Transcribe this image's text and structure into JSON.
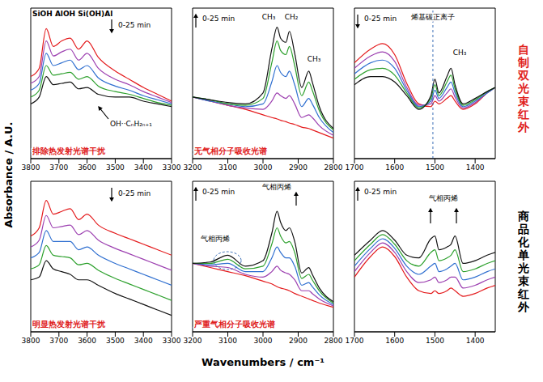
{
  "y_label": "Absorbance / A.U.",
  "x_label": "Wavenumbers / cm⁻¹",
  "row_labels": [
    {
      "text": "自制双光束红外",
      "color": "#e0201b"
    },
    {
      "text": "商品化单光束红外",
      "color": "#000000"
    }
  ],
  "chart_data": [
    {
      "type": "line",
      "xlim": [
        3800,
        3300
      ],
      "xticks": [
        3800,
        3700,
        3600,
        3500,
        3400,
        3300
      ],
      "ylim": [
        0,
        1.1
      ],
      "tick_labels": "x",
      "x": [
        3800,
        3770,
        3745,
        3720,
        3690,
        3660,
        3630,
        3600,
        3560,
        3500,
        3450,
        3400,
        3350,
        3300
      ],
      "series": [
        {
          "color": "#e41a1c",
          "values": [
            0.6,
            0.66,
            0.95,
            0.82,
            0.86,
            0.88,
            0.8,
            0.86,
            0.74,
            0.64,
            0.58,
            0.52,
            0.47,
            0.42
          ]
        },
        {
          "color": "#9c3fb0",
          "values": [
            0.55,
            0.6,
            0.86,
            0.75,
            0.78,
            0.8,
            0.72,
            0.77,
            0.66,
            0.58,
            0.54,
            0.49,
            0.45,
            0.41
          ]
        },
        {
          "color": "#2f6fd0",
          "values": [
            0.5,
            0.55,
            0.77,
            0.68,
            0.7,
            0.72,
            0.65,
            0.68,
            0.59,
            0.53,
            0.5,
            0.46,
            0.43,
            0.4
          ]
        },
        {
          "color": "#2ca02c",
          "values": [
            0.45,
            0.5,
            0.68,
            0.61,
            0.62,
            0.63,
            0.58,
            0.6,
            0.53,
            0.49,
            0.47,
            0.44,
            0.41,
            0.39
          ]
        },
        {
          "color": "#111111",
          "values": [
            0.4,
            0.45,
            0.6,
            0.54,
            0.55,
            0.56,
            0.51,
            0.52,
            0.47,
            0.45,
            0.45,
            0.42,
            0.4,
            0.38
          ]
        }
      ],
      "annotations": [
        {
          "text": "SiOH AlOH Si(OH)Al"
        },
        {
          "text": "0-25 min"
        },
        {
          "text": "OH··CₙH₂ₙ₊₁"
        },
        {
          "text": "排除热发射光谱干扰",
          "color": "#e0201b"
        }
      ]
    },
    {
      "type": "line",
      "xlim": [
        3200,
        2800
      ],
      "xticks": [
        3200,
        3100,
        3000,
        2900,
        2800
      ],
      "ylim": [
        0,
        1.1
      ],
      "tick_labels": "x",
      "x": [
        3200,
        3150,
        3100,
        3050,
        3000,
        2975,
        2960,
        2950,
        2935,
        2925,
        2910,
        2890,
        2870,
        2860,
        2840,
        2800
      ],
      "series": [
        {
          "color": "#e41a1c",
          "values": [
            0.45,
            0.42,
            0.39,
            0.36,
            0.32,
            0.3,
            0.29,
            0.28,
            0.27,
            0.26,
            0.25,
            0.23,
            0.22,
            0.21,
            0.19,
            0.15
          ]
        },
        {
          "color": "#9c3fb0",
          "values": [
            0.45,
            0.42,
            0.39,
            0.37,
            0.36,
            0.42,
            0.48,
            0.46,
            0.44,
            0.46,
            0.4,
            0.3,
            0.32,
            0.3,
            0.24,
            0.17
          ]
        },
        {
          "color": "#2f6fd0",
          "values": [
            0.45,
            0.42,
            0.4,
            0.38,
            0.4,
            0.56,
            0.68,
            0.63,
            0.6,
            0.64,
            0.54,
            0.38,
            0.44,
            0.4,
            0.3,
            0.19
          ]
        },
        {
          "color": "#2ca02c",
          "values": [
            0.45,
            0.43,
            0.4,
            0.39,
            0.44,
            0.7,
            0.86,
            0.79,
            0.76,
            0.82,
            0.68,
            0.46,
            0.56,
            0.5,
            0.35,
            0.21
          ]
        },
        {
          "color": "#111111",
          "values": [
            0.45,
            0.43,
            0.41,
            0.4,
            0.48,
            0.8,
            0.96,
            0.88,
            0.85,
            0.93,
            0.77,
            0.52,
            0.64,
            0.56,
            0.38,
            0.22
          ]
        }
      ],
      "annotations": [
        {
          "text": "0-25 min"
        },
        {
          "text": "CH₃"
        },
        {
          "text": "CH₂"
        },
        {
          "text": "CH₃"
        },
        {
          "text": "无气相分子吸收光谱",
          "color": "#e0201b"
        }
      ]
    },
    {
      "type": "line",
      "xlim": [
        1700,
        1350
      ],
      "xticks": [
        1700,
        1600,
        1500,
        1400
      ],
      "ylim": [
        0,
        1.1
      ],
      "tick_labels": "x",
      "x": [
        1700,
        1660,
        1630,
        1600,
        1570,
        1540,
        1510,
        1500,
        1490,
        1470,
        1460,
        1450,
        1430,
        1400,
        1370,
        1350
      ],
      "series": [
        {
          "color": "#e41a1c",
          "values": [
            0.7,
            0.8,
            0.84,
            0.76,
            0.55,
            0.4,
            0.38,
            0.42,
            0.4,
            0.44,
            0.46,
            0.42,
            0.36,
            0.4,
            0.48,
            0.52
          ]
        },
        {
          "color": "#9c3fb0",
          "values": [
            0.66,
            0.75,
            0.78,
            0.71,
            0.52,
            0.39,
            0.4,
            0.46,
            0.42,
            0.48,
            0.51,
            0.45,
            0.37,
            0.41,
            0.48,
            0.52
          ]
        },
        {
          "color": "#2f6fd0",
          "values": [
            0.62,
            0.7,
            0.72,
            0.66,
            0.5,
            0.38,
            0.42,
            0.5,
            0.44,
            0.52,
            0.56,
            0.48,
            0.38,
            0.42,
            0.48,
            0.52
          ]
        },
        {
          "color": "#2ca02c",
          "values": [
            0.58,
            0.65,
            0.66,
            0.61,
            0.48,
            0.37,
            0.44,
            0.54,
            0.46,
            0.56,
            0.61,
            0.51,
            0.39,
            0.43,
            0.49,
            0.52
          ]
        },
        {
          "color": "#111111",
          "values": [
            0.54,
            0.6,
            0.6,
            0.56,
            0.46,
            0.36,
            0.46,
            0.58,
            0.48,
            0.6,
            0.66,
            0.54,
            0.4,
            0.44,
            0.49,
            0.52
          ]
        }
      ],
      "annotations": [
        {
          "text": "0-25 min"
        },
        {
          "text": "烯基碳正离子",
          "x": 1505
        },
        {
          "text": "CH₃"
        }
      ]
    },
    {
      "type": "line",
      "xlim": [
        3800,
        3300
      ],
      "xticks": [
        3800,
        3700,
        3600,
        3500,
        3400,
        3300
      ],
      "ylim": [
        0,
        1.1
      ],
      "tick_labels": "x",
      "x": [
        3800,
        3770,
        3745,
        3720,
        3690,
        3660,
        3630,
        3600,
        3560,
        3500,
        3450,
        3400,
        3350,
        3300
      ],
      "series": [
        {
          "color": "#e41a1c",
          "values": [
            0.7,
            0.76,
            0.96,
            0.86,
            0.88,
            0.9,
            0.82,
            0.86,
            0.78,
            0.72,
            0.68,
            0.64,
            0.6,
            0.56
          ]
        },
        {
          "color": "#9c3fb0",
          "values": [
            0.62,
            0.67,
            0.85,
            0.76,
            0.77,
            0.78,
            0.71,
            0.74,
            0.67,
            0.61,
            0.57,
            0.53,
            0.49,
            0.45
          ]
        },
        {
          "color": "#2f6fd0",
          "values": [
            0.54,
            0.58,
            0.74,
            0.66,
            0.66,
            0.66,
            0.6,
            0.62,
            0.56,
            0.5,
            0.46,
            0.42,
            0.38,
            0.34
          ]
        },
        {
          "color": "#2ca02c",
          "values": [
            0.46,
            0.49,
            0.63,
            0.56,
            0.55,
            0.54,
            0.49,
            0.5,
            0.45,
            0.39,
            0.35,
            0.31,
            0.27,
            0.23
          ]
        },
        {
          "color": "#111111",
          "values": [
            0.38,
            0.4,
            0.52,
            0.46,
            0.44,
            0.42,
            0.38,
            0.38,
            0.34,
            0.28,
            0.24,
            0.2,
            0.16,
            0.12
          ]
        }
      ],
      "annotations": [
        {
          "text": "0-25 min"
        },
        {
          "text": "明显热发射光谱干扰",
          "color": "#e0201b"
        }
      ]
    },
    {
      "type": "line",
      "xlim": [
        3200,
        2800
      ],
      "xticks": [
        3200,
        3100,
        3000,
        2900,
        2800
      ],
      "ylim": [
        0,
        1.1
      ],
      "tick_labels": "x",
      "x": [
        3200,
        3150,
        3100,
        3050,
        3000,
        2975,
        2960,
        2950,
        2935,
        2925,
        2910,
        2890,
        2870,
        2860,
        2840,
        2800
      ],
      "series": [
        {
          "color": "#e41a1c",
          "values": [
            0.5,
            0.47,
            0.44,
            0.41,
            0.37,
            0.35,
            0.33,
            0.32,
            0.31,
            0.3,
            0.28,
            0.26,
            0.24,
            0.23,
            0.21,
            0.18
          ]
        },
        {
          "color": "#9c3fb0",
          "values": [
            0.5,
            0.48,
            0.47,
            0.42,
            0.4,
            0.44,
            0.48,
            0.45,
            0.43,
            0.42,
            0.38,
            0.3,
            0.3,
            0.28,
            0.24,
            0.19
          ]
        },
        {
          "color": "#2f6fd0",
          "values": [
            0.5,
            0.49,
            0.5,
            0.44,
            0.44,
            0.54,
            0.62,
            0.58,
            0.54,
            0.54,
            0.48,
            0.34,
            0.36,
            0.33,
            0.27,
            0.2
          ]
        },
        {
          "color": "#2ca02c",
          "values": [
            0.5,
            0.5,
            0.53,
            0.46,
            0.48,
            0.64,
            0.76,
            0.7,
            0.65,
            0.66,
            0.58,
            0.39,
            0.42,
            0.38,
            0.3,
            0.21
          ]
        },
        {
          "color": "#111111",
          "values": [
            0.5,
            0.51,
            0.56,
            0.48,
            0.52,
            0.72,
            0.88,
            0.8,
            0.74,
            0.76,
            0.66,
            0.43,
            0.47,
            0.42,
            0.32,
            0.22
          ]
        }
      ],
      "annotations": [
        {
          "text": "0-25 min"
        },
        {
          "text": "气相丙烯"
        },
        {
          "text": "气相丙烯"
        },
        {
          "text": "严重气相分子吸收光谱",
          "color": "#e0201b"
        }
      ]
    },
    {
      "type": "line",
      "xlim": [
        1700,
        1350
      ],
      "xticks": [
        1700,
        1600,
        1500,
        1400
      ],
      "ylim": [
        0,
        1.1
      ],
      "tick_labels": "x",
      "x": [
        1700,
        1660,
        1630,
        1600,
        1570,
        1540,
        1510,
        1500,
        1490,
        1470,
        1460,
        1450,
        1430,
        1400,
        1370,
        1350
      ],
      "series": [
        {
          "color": "#e41a1c",
          "values": [
            0.4,
            0.55,
            0.62,
            0.55,
            0.4,
            0.3,
            0.28,
            0.3,
            0.28,
            0.3,
            0.32,
            0.3,
            0.26,
            0.28,
            0.32,
            0.34
          ]
        },
        {
          "color": "#9c3fb0",
          "values": [
            0.44,
            0.58,
            0.65,
            0.58,
            0.44,
            0.36,
            0.38,
            0.4,
            0.36,
            0.38,
            0.4,
            0.4,
            0.32,
            0.34,
            0.38,
            0.4
          ]
        },
        {
          "color": "#2f6fd0",
          "values": [
            0.48,
            0.61,
            0.68,
            0.61,
            0.48,
            0.42,
            0.48,
            0.5,
            0.44,
            0.46,
            0.48,
            0.5,
            0.38,
            0.4,
            0.44,
            0.46
          ]
        },
        {
          "color": "#2ca02c",
          "values": [
            0.52,
            0.64,
            0.71,
            0.64,
            0.52,
            0.48,
            0.58,
            0.6,
            0.52,
            0.54,
            0.56,
            0.6,
            0.44,
            0.46,
            0.5,
            0.52
          ]
        },
        {
          "color": "#111111",
          "values": [
            0.56,
            0.67,
            0.74,
            0.67,
            0.56,
            0.54,
            0.68,
            0.7,
            0.6,
            0.62,
            0.64,
            0.7,
            0.5,
            0.52,
            0.56,
            0.58
          ]
        }
      ],
      "annotations": [
        {
          "text": "0-25 min"
        },
        {
          "text": "气相丙烯"
        }
      ]
    }
  ]
}
